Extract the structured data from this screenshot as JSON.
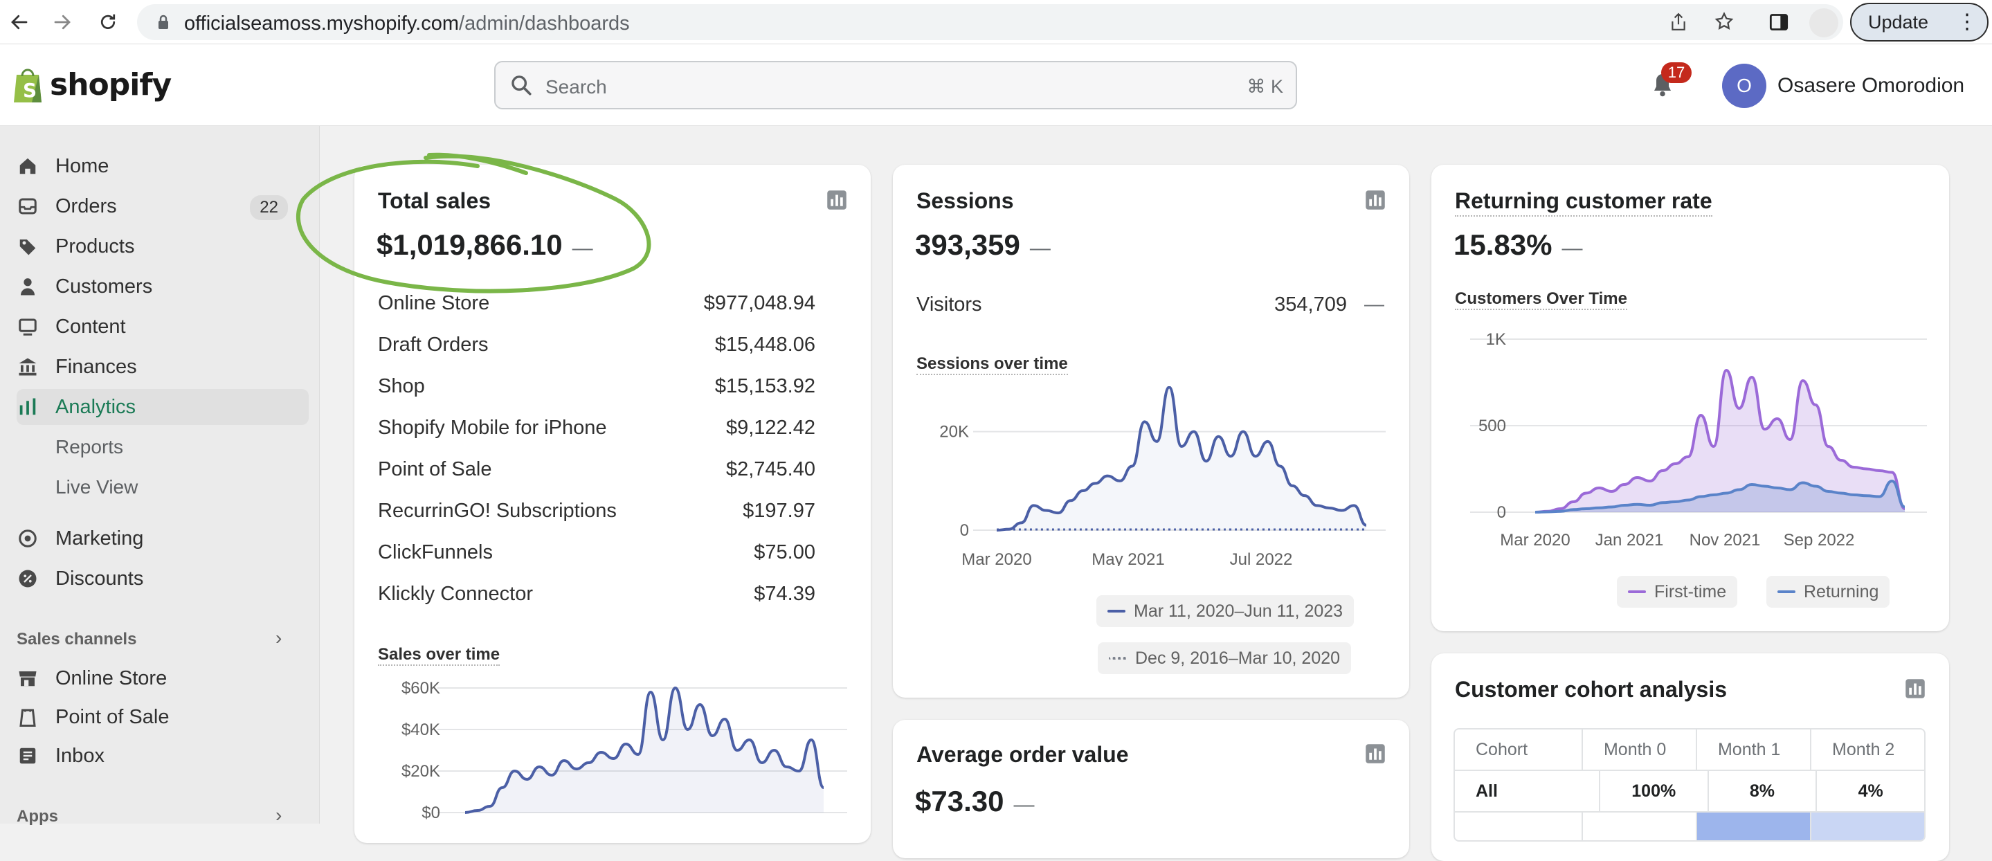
{
  "browser": {
    "url_host": "officialseamoss.myshopify.com",
    "url_path": "/admin/dashboards",
    "update_label": "Update"
  },
  "topbar": {
    "brand": "shopify",
    "search_placeholder": "Search",
    "search_shortcut": "⌘ K",
    "notification_count": "17",
    "avatar_initial": "O",
    "user_name": "Osasere Omorodion"
  },
  "sidebar": {
    "items": [
      {
        "label": "Home",
        "icon": "home-icon"
      },
      {
        "label": "Orders",
        "icon": "orders-icon",
        "count": "22"
      },
      {
        "label": "Products",
        "icon": "tag-icon"
      },
      {
        "label": "Customers",
        "icon": "person-icon"
      },
      {
        "label": "Content",
        "icon": "content-icon"
      },
      {
        "label": "Finances",
        "icon": "bank-icon"
      },
      {
        "label": "Analytics",
        "icon": "bar-chart-icon",
        "active": true
      }
    ],
    "analytics_sub": [
      "Reports",
      "Live View"
    ],
    "items2": [
      {
        "label": "Marketing",
        "icon": "target-icon"
      },
      {
        "label": "Discounts",
        "icon": "discount-icon"
      }
    ],
    "sales_channels_label": "Sales channels",
    "channels": [
      {
        "label": "Online Store",
        "icon": "store-icon"
      },
      {
        "label": "Point of Sale",
        "icon": "pos-icon"
      },
      {
        "label": "Inbox",
        "icon": "inbox-icon"
      }
    ],
    "apps_label": "Apps"
  },
  "total_sales": {
    "title": "Total sales",
    "value": "$1,019,866.10",
    "dash": "—",
    "rows": [
      {
        "label": "Online Store",
        "value": "$977,048.94"
      },
      {
        "label": "Draft Orders",
        "value": "$15,448.06"
      },
      {
        "label": "Shop",
        "value": "$15,153.92"
      },
      {
        "label": "Shopify Mobile for iPhone",
        "value": "$9,122.42"
      },
      {
        "label": "Point of Sale",
        "value": "$2,745.40"
      },
      {
        "label": "RecurrinGO! Subscriptions",
        "value": "$197.97"
      },
      {
        "label": "ClickFunnels",
        "value": "$75.00"
      },
      {
        "label": "Klickly Connector",
        "value": "$74.39"
      }
    ],
    "chart_title": "Sales over time",
    "y_ticks": [
      "$60K",
      "$40K",
      "$20K",
      "$0"
    ]
  },
  "sessions": {
    "title": "Sessions",
    "value": "393,359",
    "dash": "—",
    "visitors_label": "Visitors",
    "visitors_value": "354,709",
    "visitors_dash": "—",
    "chart_title": "Sessions over time",
    "y_ticks": [
      "20K",
      "0"
    ],
    "x_ticks": [
      "Mar 2020",
      "May 2021",
      "Jul 2022"
    ],
    "legend": [
      "Mar 11, 2020–Jun 11, 2023",
      "Dec 9, 2016–Mar 10, 2020"
    ]
  },
  "aov": {
    "title": "Average order value",
    "value": "$73.30",
    "dash": "—"
  },
  "returning": {
    "title": "Returning customer rate",
    "value": "15.83%",
    "dash": "—",
    "chart_title": "Customers Over Time",
    "y_ticks": [
      "1K",
      "500",
      "0"
    ],
    "x_ticks": [
      "Mar 2020",
      "Jan 2021",
      "Nov 2021",
      "Sep 2022"
    ],
    "legend": [
      "First-time",
      "Returning"
    ]
  },
  "cohort": {
    "title": "Customer cohort analysis",
    "headers": [
      "Cohort",
      "Month 0",
      "Month 1",
      "Month 2"
    ],
    "row": [
      "All",
      "100%",
      "8%",
      "4%"
    ]
  },
  "colors": {
    "accent_green": "#1a7a55",
    "chart_blue": "#4b5fa6",
    "first_time_purple": "#9b6ad8",
    "returning_blue": "#5a83c9",
    "annotation_green": "#7ab648"
  },
  "chart_data": [
    {
      "type": "area",
      "title": "Sales over time",
      "ylim": [
        0,
        60000
      ],
      "y_ticks": [
        "$60K",
        "$40K",
        "$20K",
        "$0"
      ],
      "series": [
        {
          "values": [
            0,
            1000,
            3000,
            12000,
            20000,
            16000,
            22000,
            18000,
            25000,
            21000,
            24000,
            29000,
            26000,
            33000,
            28000,
            58000,
            35000,
            60000,
            40000,
            52000,
            37000,
            45000,
            30000,
            35000,
            24000,
            30000,
            22000,
            20000,
            35000,
            12000
          ]
        }
      ]
    },
    {
      "type": "area",
      "title": "Sessions over time",
      "ylim": [
        0,
        25000
      ],
      "y_ticks": [
        "20K",
        "0"
      ],
      "x_ticks": [
        "Mar 2020",
        "May 2021",
        "Jul 2022"
      ],
      "series": [
        {
          "name": "Mar 11, 2020–Jun 11, 2023",
          "values": [
            0,
            200,
            1500,
            5000,
            4000,
            3500,
            6000,
            8000,
            9500,
            11000,
            10000,
            13000,
            22000,
            18000,
            29000,
            17000,
            20000,
            14000,
            19000,
            15000,
            20000,
            15000,
            18000,
            13000,
            9000,
            7000,
            5000,
            4500,
            4000,
            5000,
            1000
          ]
        },
        {
          "name": "Dec 9, 2016–Mar 10, 2020",
          "values": [
            0,
            0,
            0,
            0,
            0,
            0,
            0,
            0,
            0,
            0,
            0,
            0,
            0,
            0,
            0,
            0,
            0,
            0,
            0,
            0,
            0,
            0,
            0,
            0,
            0,
            0,
            0,
            0,
            0,
            0,
            0
          ]
        }
      ]
    },
    {
      "type": "area",
      "title": "Customers Over Time",
      "ylim": [
        0,
        1000
      ],
      "y_ticks": [
        "1K",
        "500",
        "0"
      ],
      "x_ticks": [
        "Mar 2020",
        "Jan 2021",
        "Nov 2021",
        "Sep 2022"
      ],
      "series": [
        {
          "name": "First-time",
          "values": [
            0,
            5,
            20,
            60,
            110,
            140,
            120,
            160,
            200,
            180,
            240,
            280,
            320,
            560,
            380,
            820,
            600,
            780,
            480,
            540,
            420,
            760,
            620,
            380,
            300,
            260,
            250,
            240,
            230,
            20
          ]
        },
        {
          "name": "Returning",
          "values": [
            0,
            2,
            5,
            15,
            20,
            25,
            30,
            40,
            45,
            40,
            55,
            60,
            70,
            90,
            100,
            110,
            130,
            160,
            150,
            140,
            130,
            170,
            150,
            120,
            110,
            100,
            95,
            90,
            180,
            30
          ]
        }
      ]
    }
  ]
}
